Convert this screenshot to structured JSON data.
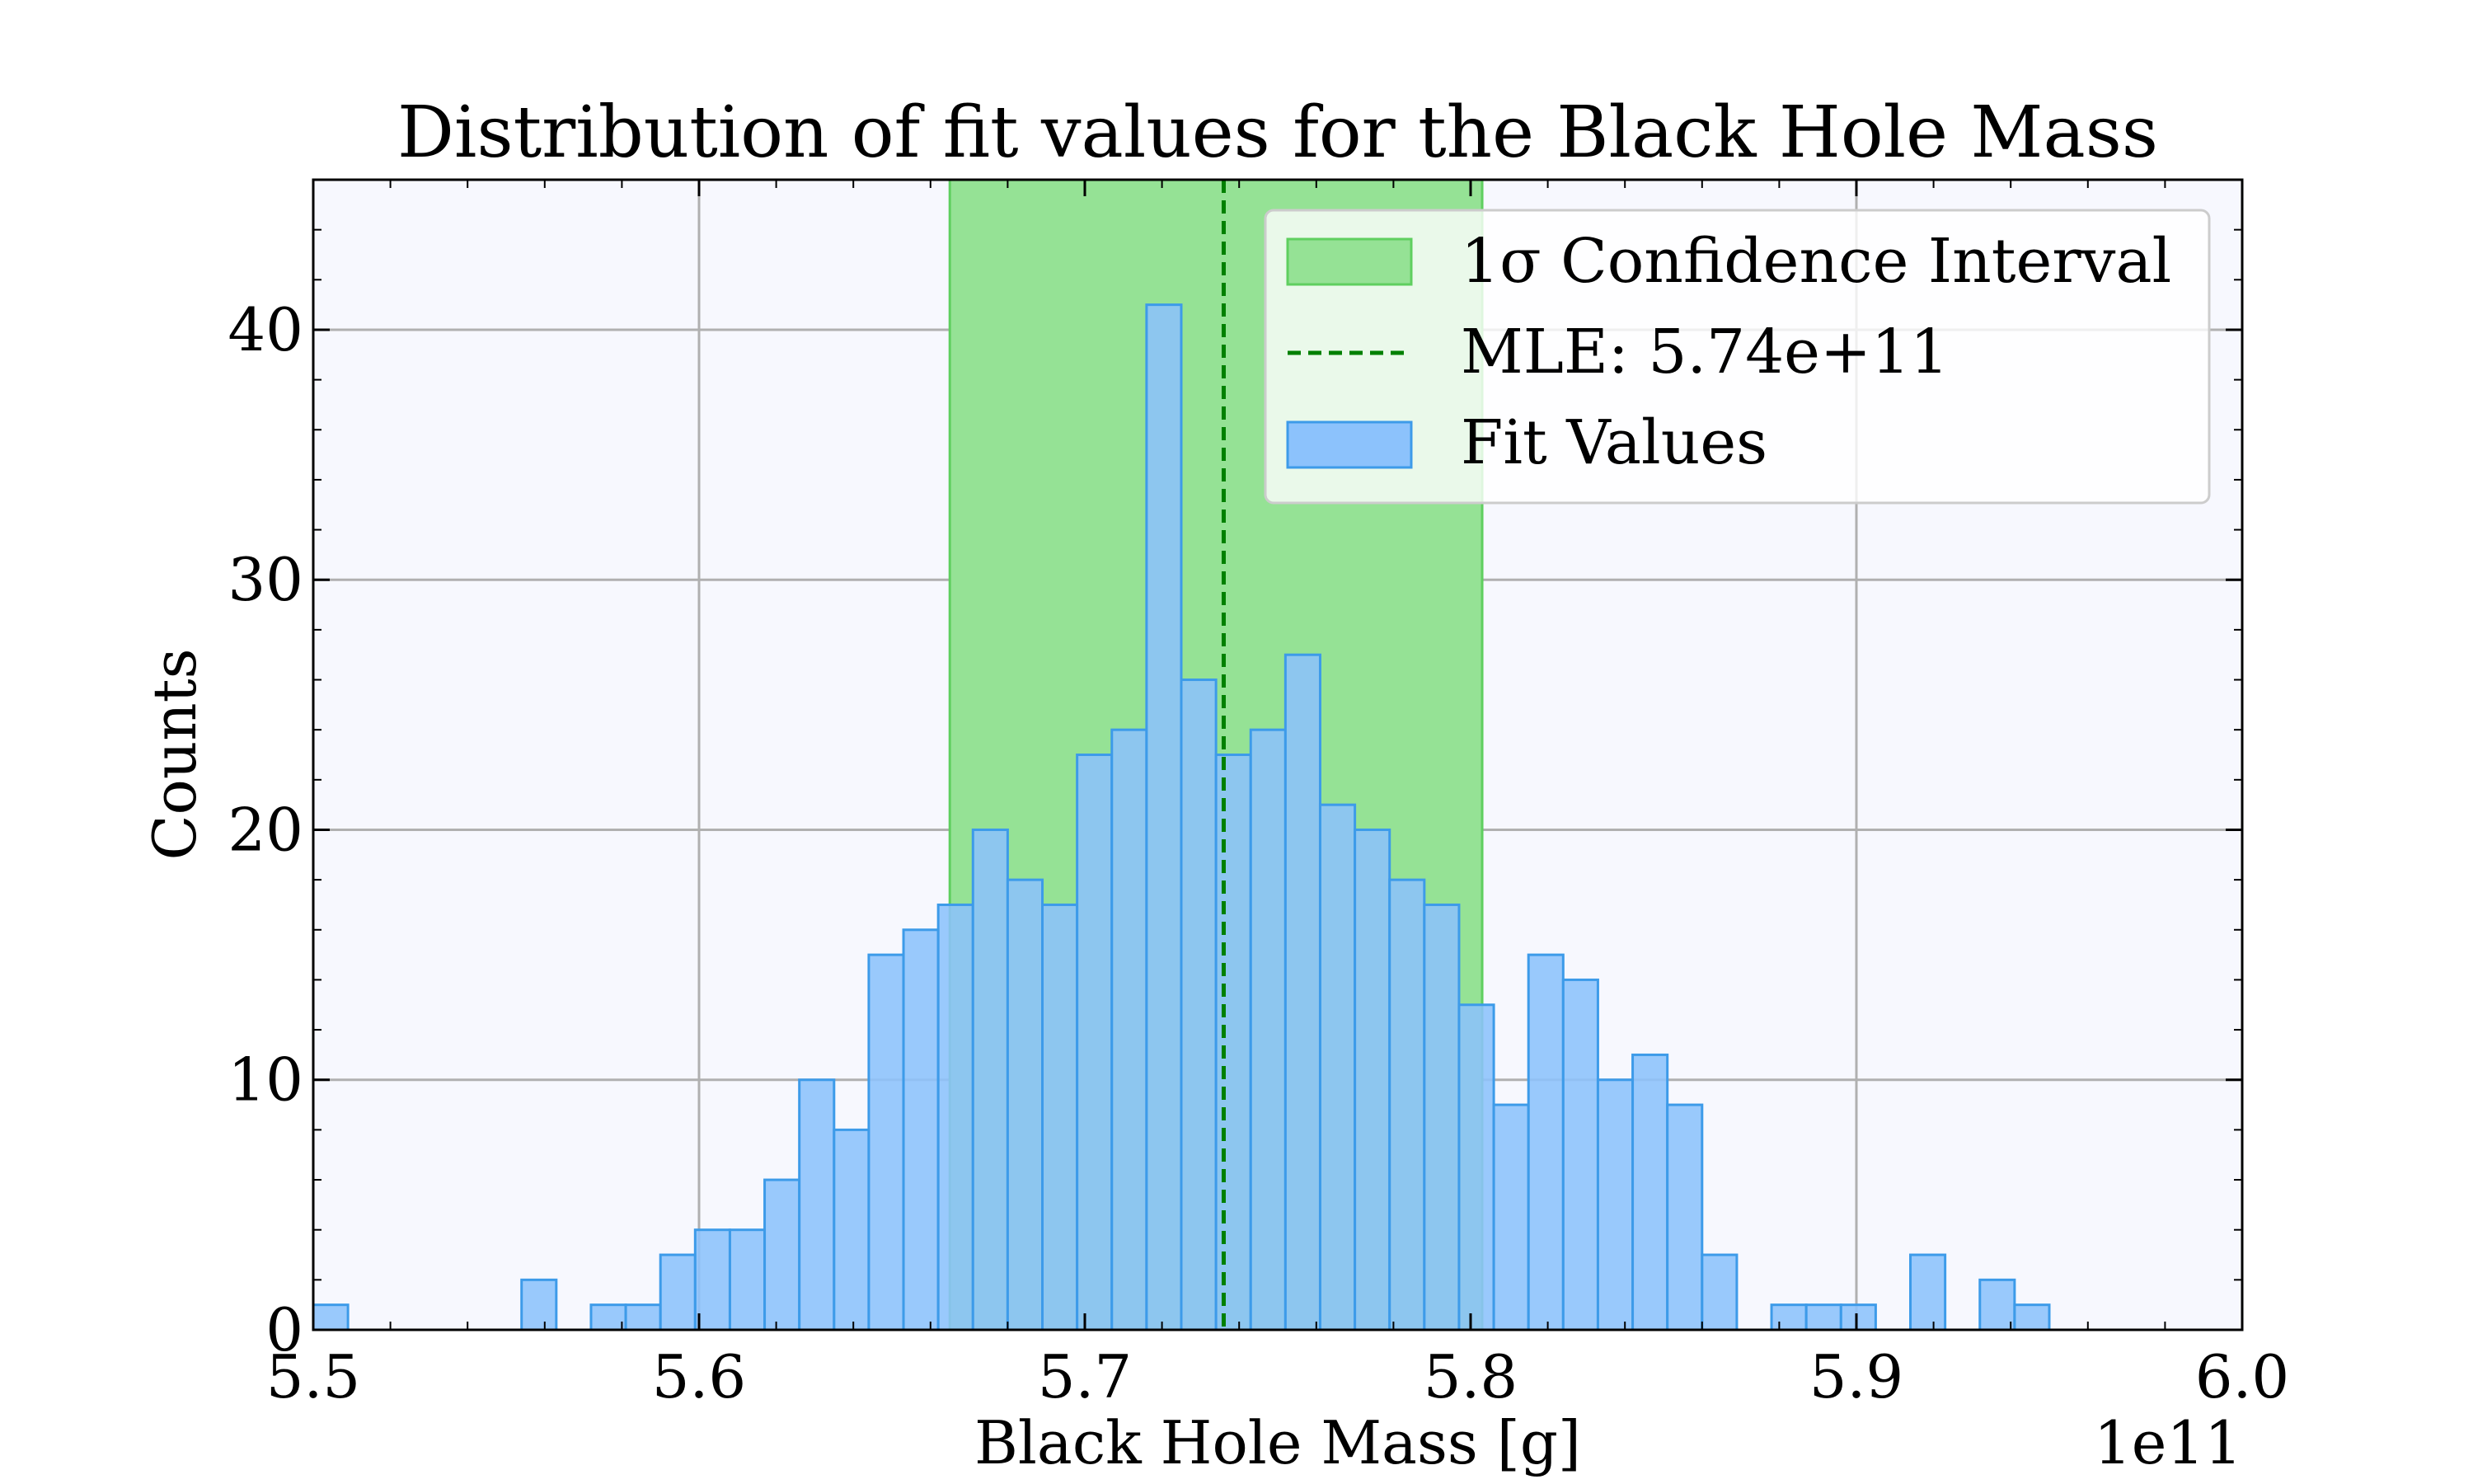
{
  "chart_data": {
    "type": "bar",
    "title": "Distribution of fit values for the Black Hole Mass",
    "xlabel": "Black Hole Mass [g]",
    "ylabel": "Counts",
    "x_offset_label": "1e11",
    "xlim": [
      5.5,
      6.0
    ],
    "ylim": [
      0,
      46
    ],
    "x_ticks": [
      "5.5",
      "5.6",
      "5.7",
      "5.8",
      "5.9",
      "6.0"
    ],
    "y_ticks": [
      "0",
      "10",
      "20",
      "30",
      "40"
    ],
    "grid": true,
    "legend_position": "top-right",
    "bin_width": 0.009,
    "bin_starts": [
      5.5,
      5.509,
      5.518,
      5.527,
      5.536,
      5.545,
      5.554,
      5.563,
      5.572,
      5.581,
      5.59,
      5.599,
      5.608,
      5.617,
      5.626,
      5.635,
      5.644,
      5.653,
      5.662,
      5.671,
      5.68,
      5.689,
      5.698,
      5.707,
      5.716,
      5.725,
      5.734,
      5.743,
      5.752,
      5.761,
      5.77,
      5.779,
      5.788,
      5.797,
      5.806,
      5.815,
      5.824,
      5.833,
      5.842,
      5.851,
      5.86,
      5.869,
      5.878,
      5.887,
      5.896,
      5.905,
      5.914,
      5.923,
      5.932,
      5.941
    ],
    "counts": [
      1,
      0,
      0,
      0,
      0,
      0,
      2,
      0,
      1,
      1,
      3,
      4,
      4,
      6,
      10,
      8,
      15,
      16,
      17,
      20,
      18,
      17,
      23,
      24,
      41,
      26,
      23,
      24,
      27,
      21,
      20,
      18,
      17,
      13,
      9,
      15,
      14,
      10,
      11,
      9,
      3,
      0,
      1,
      1,
      1,
      0,
      3,
      0,
      2,
      1
    ],
    "confidence_interval": [
      5.665,
      5.803
    ],
    "mle": 5.736,
    "series": [
      {
        "name": "1σ Confidence Interval",
        "color": "#2ecc40"
      },
      {
        "name": "MLE: 5.74e+11",
        "color": "#008000"
      },
      {
        "name": "Fit Values",
        "color": "#1e90ff"
      }
    ],
    "colors": {
      "plot_background": "#f7f8fe",
      "grid": "#b0b0b0",
      "bar_fill": "#8cc2fc",
      "bar_edge": "#3d9be9",
      "interval_fill": "#95e295",
      "interval_edge": "#5fcf5f",
      "mle_line": "#008000"
    }
  }
}
